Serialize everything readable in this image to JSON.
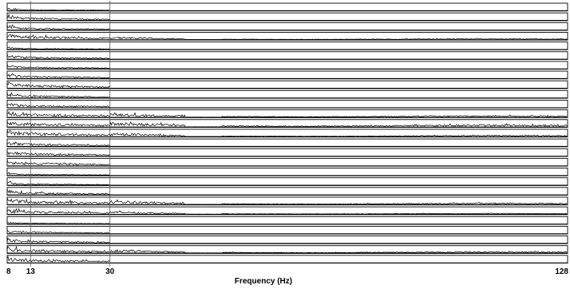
{
  "chart_data": {
    "type": "line",
    "xlabel": "Frequency (Hz)",
    "xlim": [
      8,
      128
    ],
    "xticks": [
      8,
      13,
      30,
      128
    ],
    "xtick_labels": [
      "8",
      "13",
      "30",
      "128"
    ],
    "vertical_reference_lines": [
      13,
      30
    ],
    "stroke_color": "#000000",
    "background": "#ffffff",
    "series": [
      {
        "amplitude": 0.15,
        "peak": 0.6,
        "tail": 0.1,
        "extent": 30
      },
      {
        "amplitude": 0.4,
        "peak": 0.9,
        "tail": 0.05,
        "extent": 30
      },
      {
        "amplitude": 0.35,
        "peak": 0.7,
        "tail": 0.1,
        "extent": 30
      },
      {
        "amplitude": 0.6,
        "peak": 0.6,
        "tail": 0.15,
        "extent": 128
      },
      {
        "amplitude": 0.15,
        "peak": 0.5,
        "tail": 0.1,
        "extent": 30
      },
      {
        "amplitude": 0.35,
        "peak": 0.8,
        "tail": 0.1,
        "extent": 30
      },
      {
        "amplitude": 0.3,
        "peak": 0.6,
        "tail": 0.1,
        "extent": 30
      },
      {
        "amplitude": 0.4,
        "peak": 0.7,
        "tail": 0.12,
        "extent": 30
      },
      {
        "amplitude": 0.55,
        "peak": 0.7,
        "tail": 0.12,
        "extent": 30
      },
      {
        "amplitude": 0.4,
        "peak": 0.6,
        "tail": 0.1,
        "extent": 30
      },
      {
        "amplitude": 0.4,
        "peak": 0.7,
        "tail": 0.1,
        "extent": 30
      },
      {
        "amplitude": 0.6,
        "peak": 0.6,
        "tail": 0.25,
        "extent": 128
      },
      {
        "amplitude": 0.65,
        "peak": 0.6,
        "tail": 0.35,
        "extent": 128
      },
      {
        "amplitude": 0.7,
        "peak": 0.6,
        "tail": 0.2,
        "extent": 128
      },
      {
        "amplitude": 0.45,
        "peak": 0.5,
        "tail": 0.2,
        "extent": 30
      },
      {
        "amplitude": 0.5,
        "peak": 0.7,
        "tail": 0.1,
        "extent": 30
      },
      {
        "amplitude": 0.55,
        "peak": 0.6,
        "tail": 0.12,
        "extent": 30
      },
      {
        "amplitude": 0.2,
        "peak": 0.5,
        "tail": 0.1,
        "extent": 30
      },
      {
        "amplitude": 0.2,
        "peak": 0.6,
        "tail": 0.05,
        "extent": 30
      },
      {
        "amplitude": 0.4,
        "peak": 0.9,
        "tail": 0.08,
        "extent": 30
      },
      {
        "amplitude": 0.65,
        "peak": 0.6,
        "tail": 0.25,
        "extent": 128
      },
      {
        "amplitude": 0.55,
        "peak": 0.6,
        "tail": 0.15,
        "extent": 128
      },
      {
        "amplitude": 0.15,
        "peak": 0.4,
        "tail": 0.1,
        "extent": 30
      },
      {
        "amplitude": 0.3,
        "peak": 0.5,
        "tail": 0.1,
        "extent": 30
      },
      {
        "amplitude": 0.45,
        "peak": 0.6,
        "tail": 0.15,
        "extent": 30
      },
      {
        "amplitude": 0.6,
        "peak": 0.6,
        "tail": 0.2,
        "extent": 128
      },
      {
        "amplitude": 0.55,
        "peak": 0.6,
        "tail": 0.12,
        "extent": 30
      }
    ]
  }
}
